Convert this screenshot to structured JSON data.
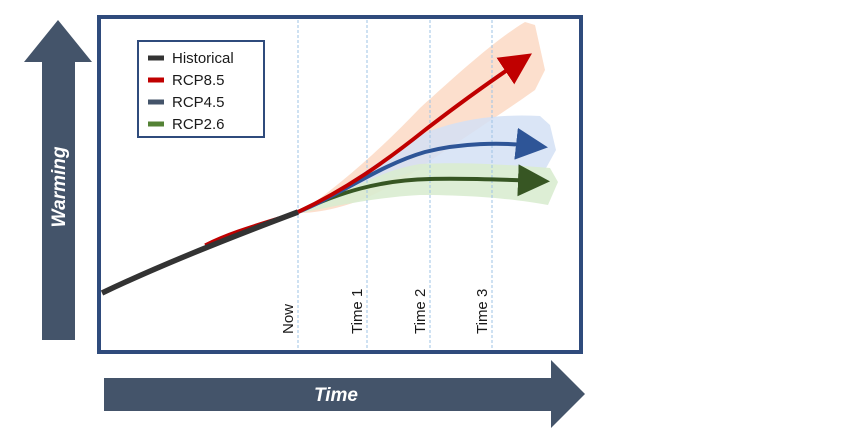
{
  "axes": {
    "y_label": "Warming",
    "x_label": "Time",
    "arrow_color": "#44546a"
  },
  "legend": {
    "items": [
      {
        "label": "Historical",
        "color": "#333333"
      },
      {
        "label": "RCP8.5",
        "color": "#c00000"
      },
      {
        "label": "RCP4.5",
        "color": "#2e5597"
      },
      {
        "label": "RCP2.6",
        "color": "#548235"
      }
    ]
  },
  "time_markers": [
    "Now",
    "Time 1",
    "Time 2",
    "Time 3"
  ],
  "colors": {
    "frame": "#2f4b7c",
    "gridline": "#9dc3e6",
    "historical": "#333333",
    "rcp85_line": "#c00000",
    "rcp85_band": "#fbd9c4",
    "rcp45_line": "#2e5597",
    "rcp45_band": "#d4e0f4",
    "rcp26_line": "#375623",
    "rcp26_band": "#d9ecd0"
  }
}
